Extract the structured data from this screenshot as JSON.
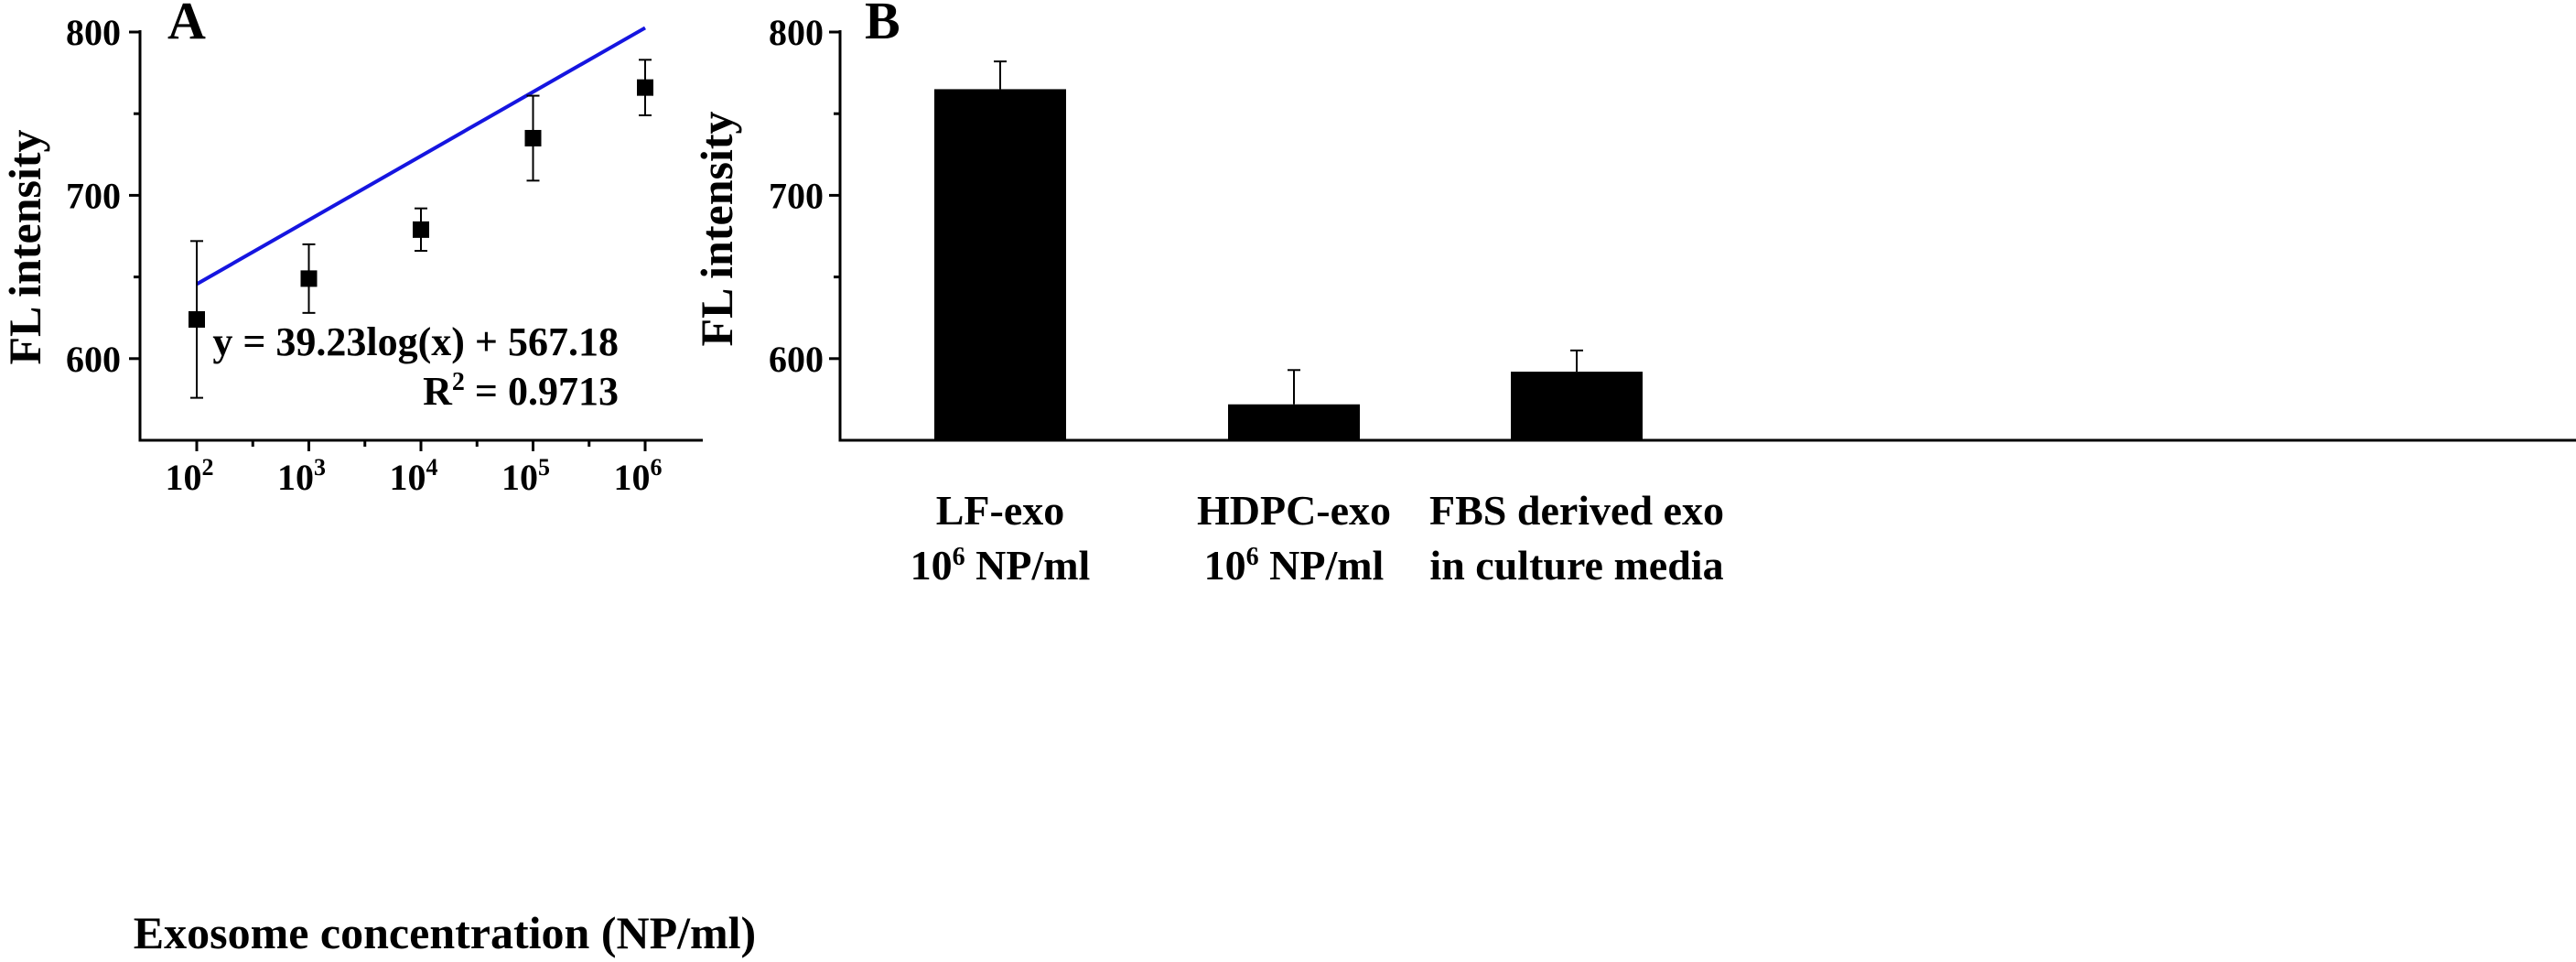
{
  "chart_data": [
    {
      "panel": "A",
      "type": "scatter",
      "xlabel": "Exosome concentration (NP/ml)",
      "ylabel": "FL intensity",
      "x_scale": "log10",
      "x": [
        100,
        1000,
        10000,
        100000,
        1000000
      ],
      "x_exponents": [
        2,
        3,
        4,
        5,
        6
      ],
      "y": [
        624,
        649,
        679,
        735,
        766
      ],
      "y_error": [
        48,
        21,
        13,
        26,
        17
      ],
      "ylim": [
        550,
        800
      ],
      "yticks": [
        600,
        700,
        800
      ],
      "fit": {
        "slope": 39.23,
        "intercept": 567.18,
        "color": "#1515e0"
      },
      "annotations": {
        "equation": "y = 39.23log(x) + 567.18",
        "r2_prefix": "R",
        "r2_sup": "2",
        "r2_value": " = 0.9713"
      },
      "tick_base": "10"
    },
    {
      "panel": "B",
      "type": "bar",
      "ylabel": "FL intensity",
      "categories": [
        {
          "line1": "LF-exo",
          "line2_base": "10",
          "line2_sup": "6",
          "line2_rest": " NP/ml"
        },
        {
          "line1": "HDPC-exo",
          "line2_base": "10",
          "line2_sup": "6",
          "line2_rest": " NP/ml"
        },
        {
          "line1": "FBS derived exo",
          "line2_base": "",
          "line2_sup": "",
          "line2_rest": "in culture media"
        }
      ],
      "values": [
        765,
        572,
        592
      ],
      "errors": [
        17,
        21,
        13
      ],
      "ylim": [
        550,
        800
      ],
      "yticks": [
        600,
        700,
        800
      ],
      "bar_color": "#000000"
    }
  ]
}
